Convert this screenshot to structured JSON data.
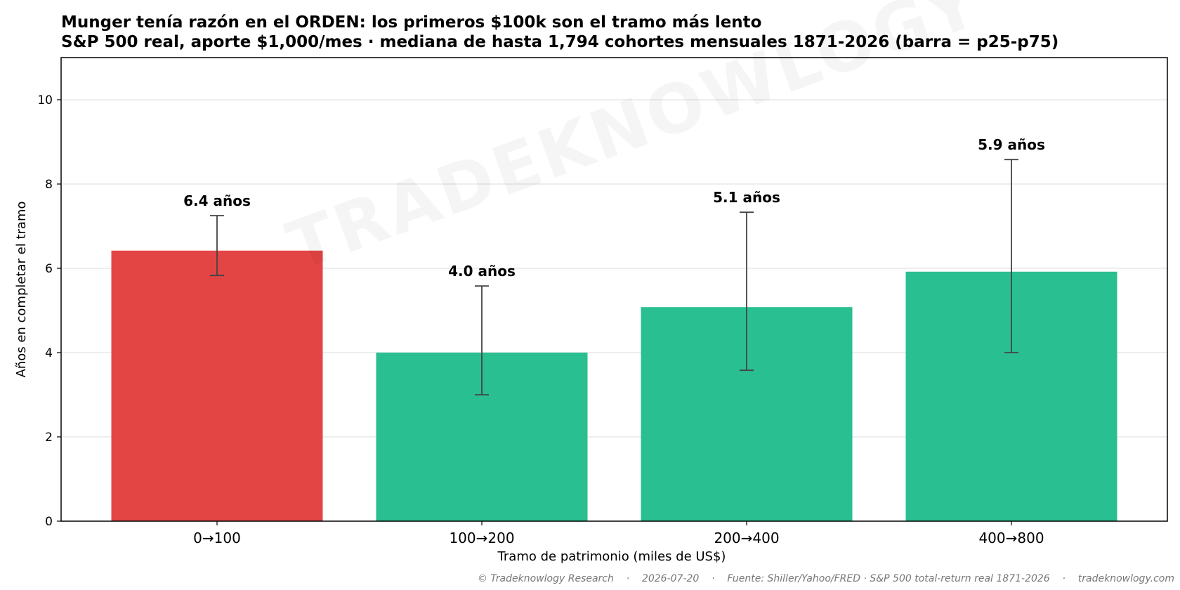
{
  "chart_data": {
    "type": "bar",
    "title": "Munger tenía razón en el ORDEN: los primeros $100k son el tramo más lento",
    "subtitle": "S&P 500 real, aporte $1,000/mes · mediana de hasta 1,794 cohortes mensuales 1871-2026 (barra = p25-p75)",
    "xlabel": "Tramo de patrimonio (miles de US$)",
    "ylabel": "Años en completar el tramo",
    "ylim": [
      0,
      11
    ],
    "yticks": [
      "0",
      "2",
      "4",
      "6",
      "8",
      "10"
    ],
    "grid": "horizontal",
    "categories": [
      "0→100",
      "100→200",
      "200→400",
      "400→800"
    ],
    "values": [
      6.42,
      4.0,
      5.08,
      5.92
    ],
    "p25": [
      5.83,
      3.0,
      3.58,
      4.0
    ],
    "p75": [
      7.25,
      5.58,
      7.33,
      8.58
    ],
    "value_labels": [
      "6.4 años",
      "4.0 años",
      "5.1 años",
      "5.9 años"
    ],
    "bar_colors": [
      "#e34545",
      "#2abf90",
      "#2abf90",
      "#2abf90"
    ],
    "errorbar_color": "#444444"
  },
  "watermark": "TRADEKNOWLOGY",
  "footer": {
    "credit": "© Tradeknowlogy Research",
    "date": "2026-07-20",
    "source": "Fuente: Shiller/Yahoo/FRED · S&P 500 total-return real 1871-2026",
    "site": "tradeknowlogy.com",
    "separator": "·"
  }
}
